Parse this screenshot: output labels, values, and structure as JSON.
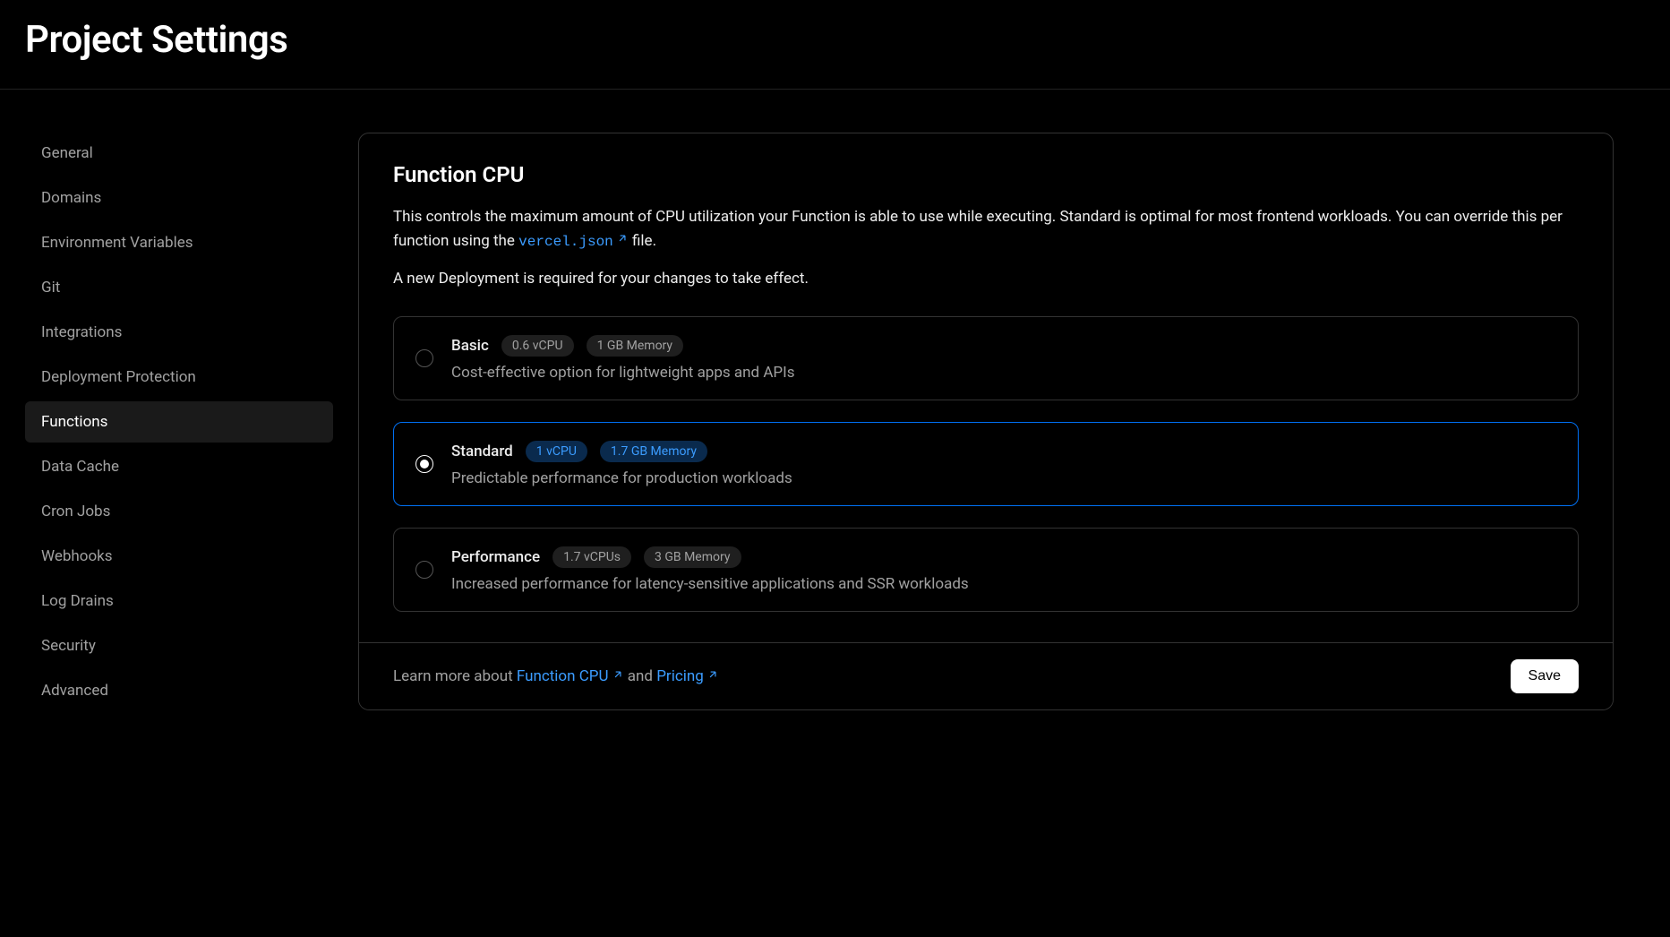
{
  "header": {
    "title": "Project Settings"
  },
  "sidebar": {
    "items": [
      {
        "label": "General",
        "active": false
      },
      {
        "label": "Domains",
        "active": false
      },
      {
        "label": "Environment Variables",
        "active": false
      },
      {
        "label": "Git",
        "active": false
      },
      {
        "label": "Integrations",
        "active": false
      },
      {
        "label": "Deployment Protection",
        "active": false
      },
      {
        "label": "Functions",
        "active": true
      },
      {
        "label": "Data Cache",
        "active": false
      },
      {
        "label": "Cron Jobs",
        "active": false
      },
      {
        "label": "Webhooks",
        "active": false
      },
      {
        "label": "Log Drains",
        "active": false
      },
      {
        "label": "Security",
        "active": false
      },
      {
        "label": "Advanced",
        "active": false
      }
    ]
  },
  "card": {
    "title": "Function CPU",
    "desc_pre": "This controls the maximum amount of CPU utilization your Function is able to use while executing. Standard is optimal for most frontend workloads. You can override this per function using the ",
    "desc_link": "vercel.json",
    "desc_post": " file.",
    "note": "A new Deployment is required for your changes to take effect.",
    "options": [
      {
        "name": "Basic",
        "cpu": "0.6 vCPU",
        "memory": "1 GB Memory",
        "desc": "Cost-effective option for lightweight apps and APIs",
        "selected": false
      },
      {
        "name": "Standard",
        "cpu": "1 vCPU",
        "memory": "1.7 GB Memory",
        "desc": "Predictable performance for production workloads",
        "selected": true
      },
      {
        "name": "Performance",
        "cpu": "1.7 vCPUs",
        "memory": "3 GB Memory",
        "desc": "Increased performance for latency-sensitive applications and SSR workloads",
        "selected": false
      }
    ],
    "footer": {
      "learn_pre": "Learn more about ",
      "link1": "Function CPU",
      "and": " and ",
      "link2": "Pricing",
      "save": "Save"
    }
  }
}
